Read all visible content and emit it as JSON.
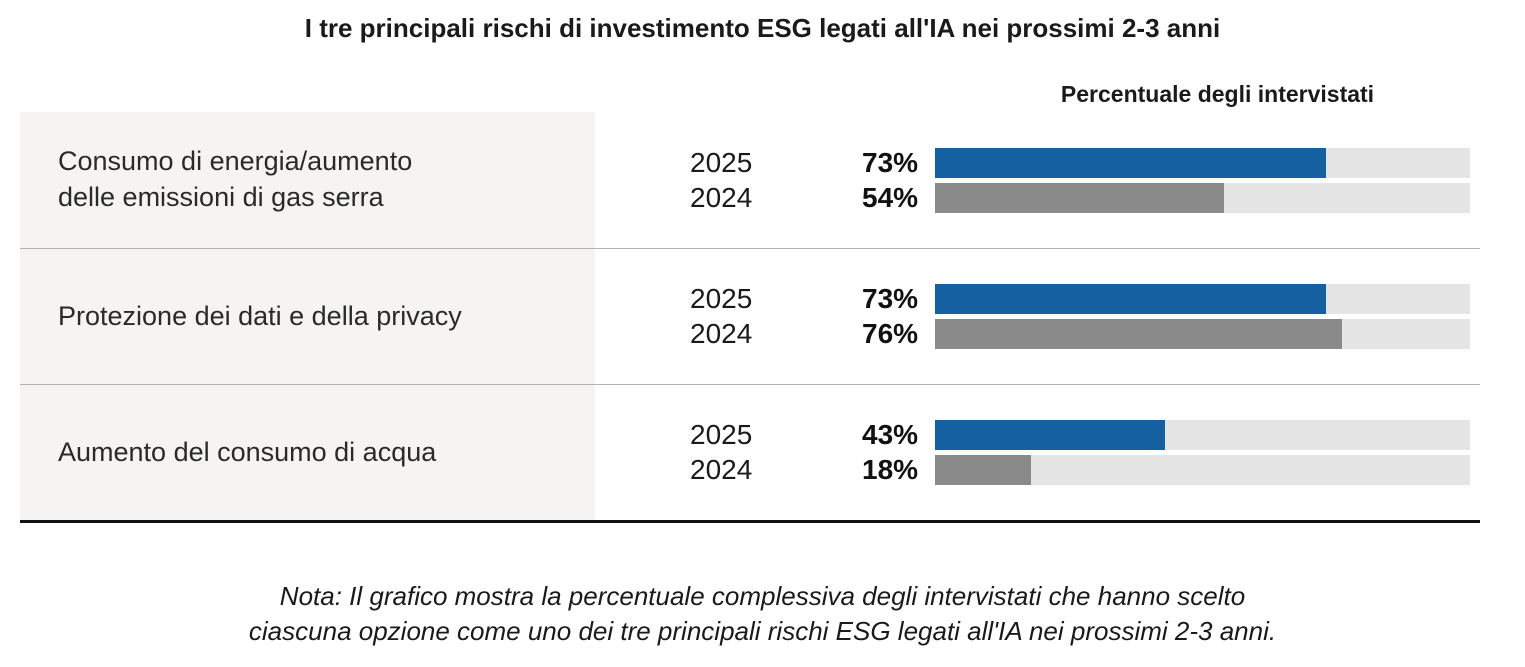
{
  "title": "I tre principali rischi di investimento ESG legati all'IA nei prossimi 2-3 anni",
  "column_header": "Percentuale degli intervistati",
  "colors": {
    "2025": "#1560a0",
    "2024": "#8a8a8a",
    "track": "#e5e5e5",
    "panel": "#f5f4f3"
  },
  "rows": [
    {
      "label": "Consumo di energia/aumento\ndelle emissioni di gas serra",
      "bars": [
        {
          "year": "2025",
          "value": "73%",
          "pct": 73
        },
        {
          "year": "2024",
          "value": "54%",
          "pct": 54
        }
      ]
    },
    {
      "label": "Protezione dei dati e della privacy",
      "bars": [
        {
          "year": "2025",
          "value": "73%",
          "pct": 73
        },
        {
          "year": "2024",
          "value": "76%",
          "pct": 76
        }
      ]
    },
    {
      "label": "Aumento del consumo di acqua",
      "bars": [
        {
          "year": "2025",
          "value": "43%",
          "pct": 43
        },
        {
          "year": "2024",
          "value": "18%",
          "pct": 18
        }
      ]
    }
  ],
  "note": {
    "line1": "Nota: Il grafico mostra la percentuale complessiva degli intervistati che hanno scelto",
    "line2": "ciascuna opzione come uno dei tre principali rischi ESG legati all'IA nei prossimi 2-3 anni."
  },
  "chart_data": {
    "type": "bar",
    "orientation": "horizontal",
    "title": "I tre principali rischi di investimento ESG legati all'IA nei prossimi 2-3 anni",
    "xlabel": "Percentuale degli intervistati",
    "xlim": [
      0,
      100
    ],
    "value_suffix": "%",
    "grid": false,
    "categories": [
      "Consumo di energia/aumento delle emissioni di gas serra",
      "Protezione dei dati e della privacy",
      "Aumento del consumo di acqua"
    ],
    "series": [
      {
        "name": "2025",
        "values": [
          73,
          73,
          43
        ],
        "color": "#1560a0"
      },
      {
        "name": "2024",
        "values": [
          54,
          76,
          18
        ],
        "color": "#8a8a8a"
      }
    ],
    "legend_position": "inline-year-labels",
    "note": "Nota: Il grafico mostra la percentuale complessiva degli intervistati che hanno scelto ciascuna opzione come uno dei tre principali rischi ESG legati all'IA nei prossimi 2-3 anni."
  }
}
